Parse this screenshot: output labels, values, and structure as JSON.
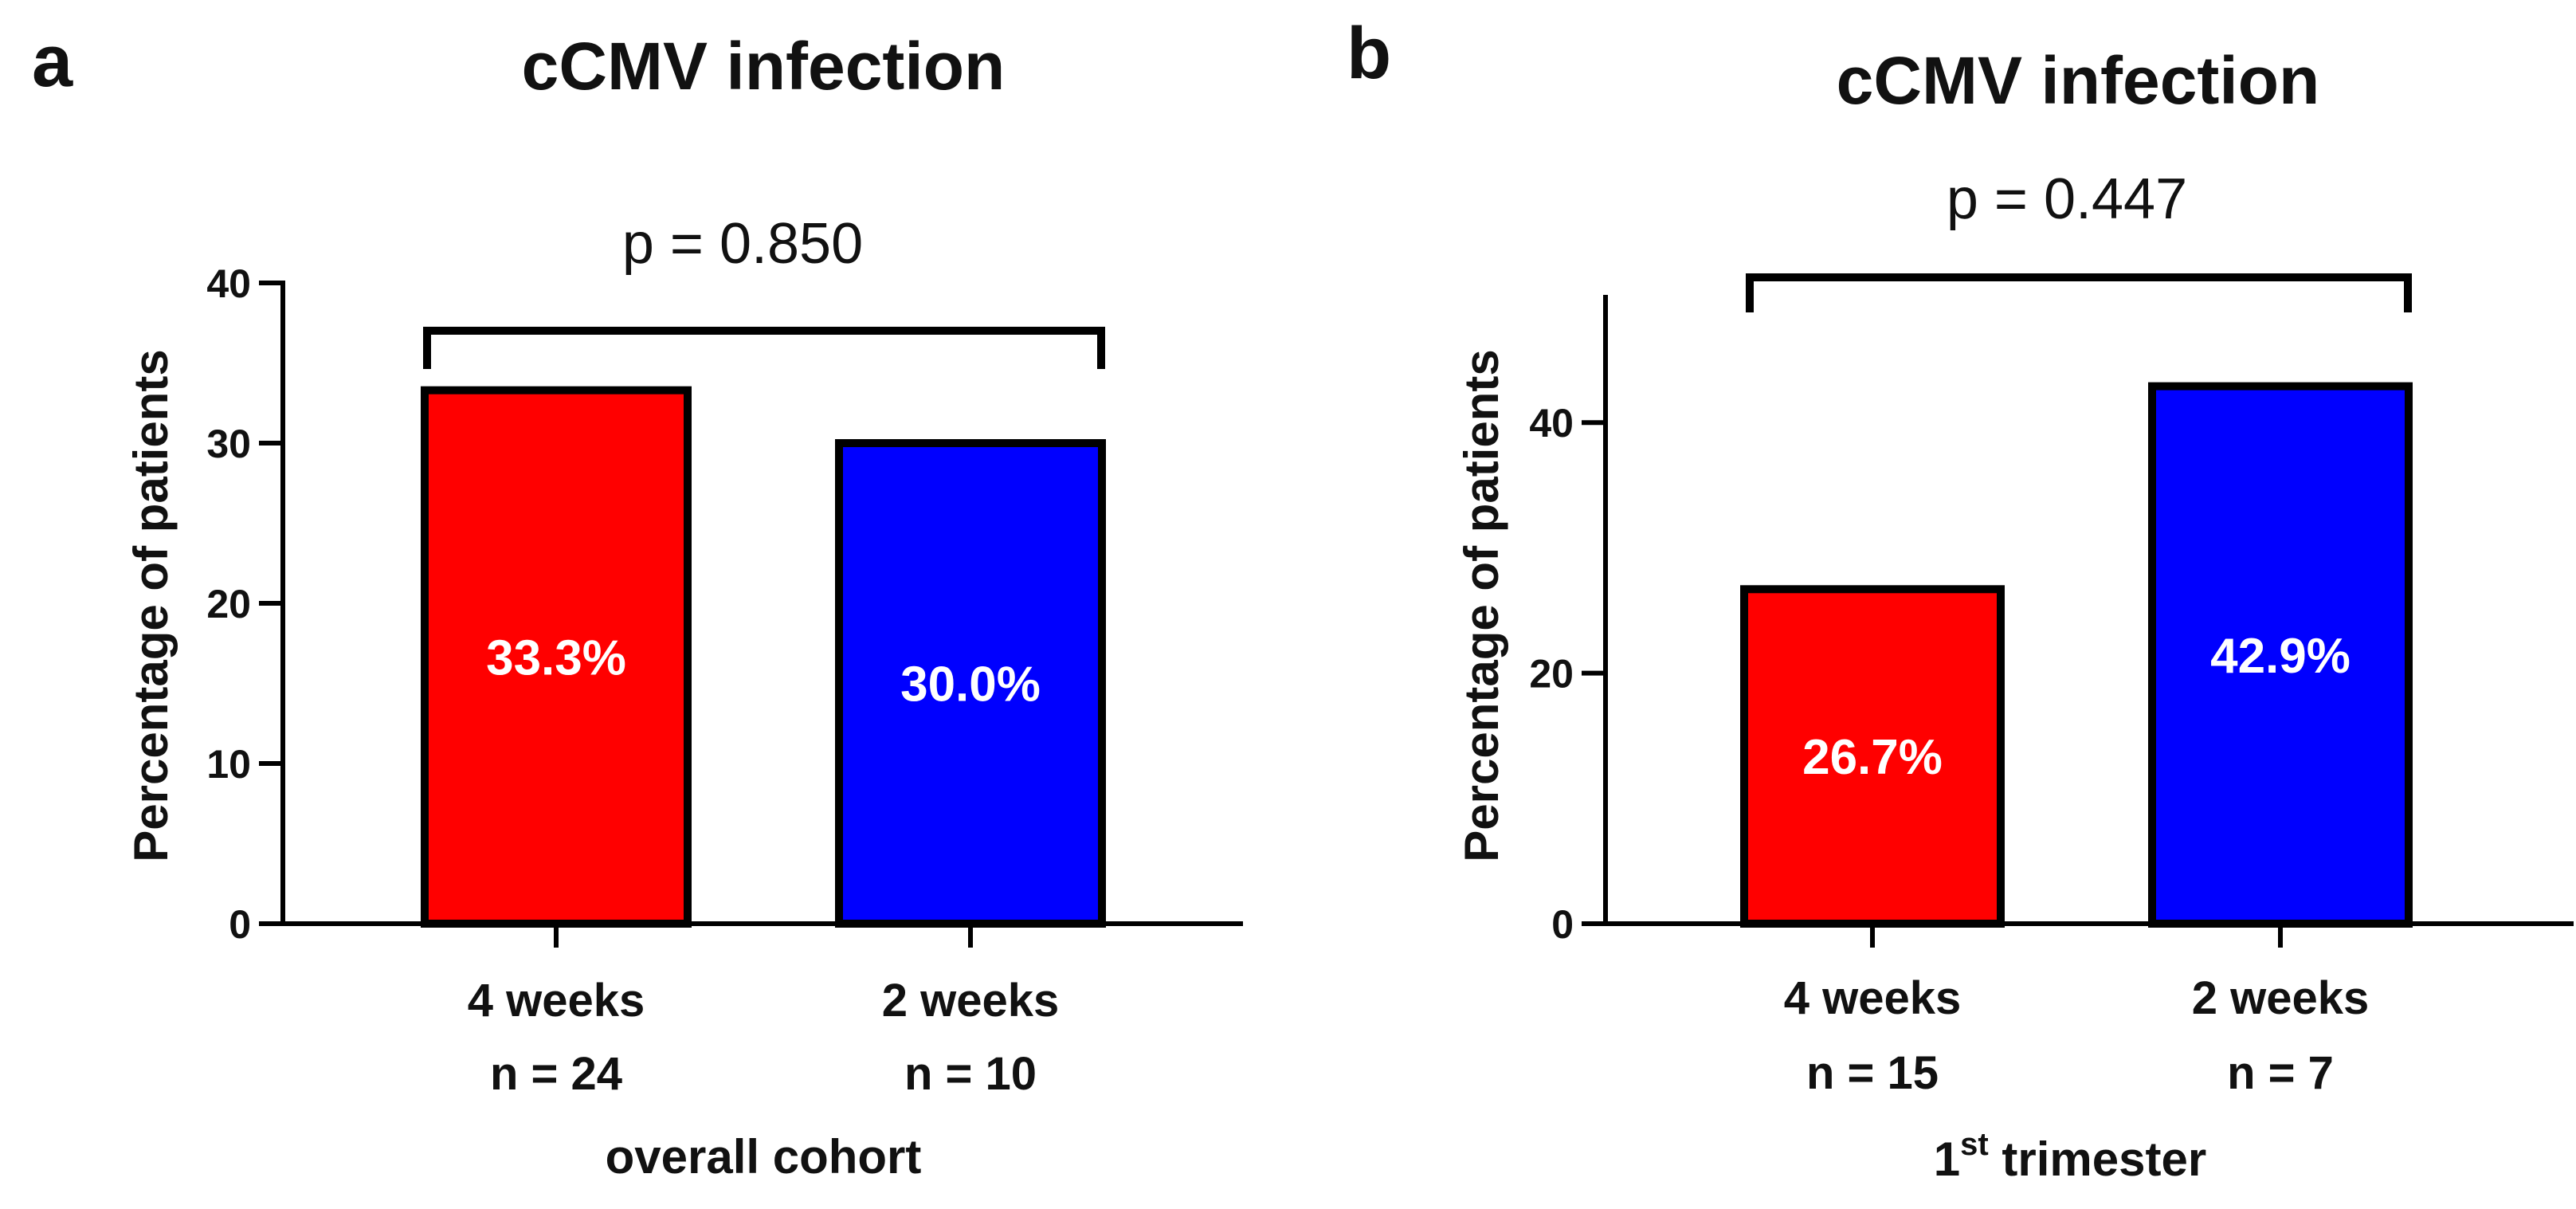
{
  "chart_data": [
    {
      "type": "bar",
      "panel": "a",
      "title": "cCMV infection",
      "ylabel": "Percentage of patients",
      "xlabel": "overall cohort",
      "ylim": [
        0,
        40
      ],
      "yticks": [
        0,
        10,
        20,
        30,
        40
      ],
      "categories": [
        "4 weeks",
        "2 weeks"
      ],
      "n_labels": [
        "n = 24",
        "n = 10"
      ],
      "values": [
        33.3,
        30.0
      ],
      "value_labels": [
        "33.3%",
        "30.0%"
      ],
      "colors": [
        "#ff0000",
        "#0000ff"
      ],
      "significance": {
        "text": "p = 0.850"
      }
    },
    {
      "type": "bar",
      "panel": "b",
      "title": "cCMV infection",
      "ylabel": "Percentage of patients",
      "xlabel": "trimester",
      "xlabel_prefix": "1",
      "xlabel_sup": "st",
      "ylim": [
        0,
        50
      ],
      "yticks": [
        0,
        20,
        40
      ],
      "categories": [
        "4 weeks",
        "2 weeks"
      ],
      "n_labels": [
        "n = 15",
        "n = 7"
      ],
      "values": [
        26.7,
        42.9
      ],
      "value_labels": [
        "26.7%",
        "42.9%"
      ],
      "colors": [
        "#ff0000",
        "#0000ff"
      ],
      "significance": {
        "text": "p = 0.447"
      }
    }
  ]
}
